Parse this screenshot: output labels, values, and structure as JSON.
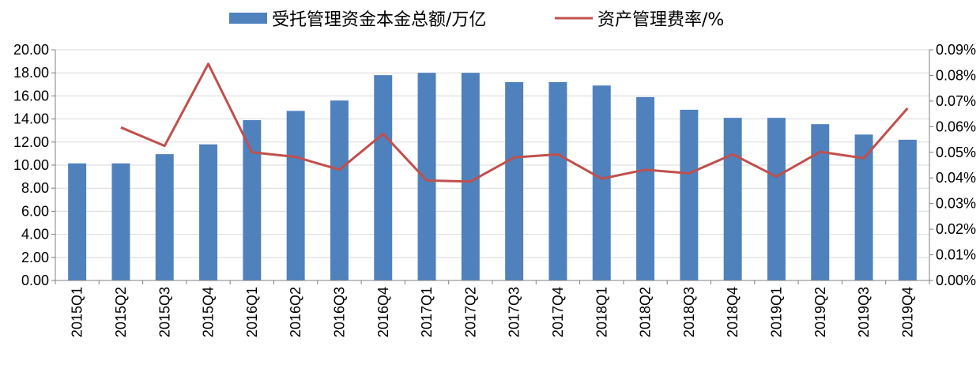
{
  "chart_data": {
    "type": "bar",
    "categories": [
      "2015Q1",
      "2015Q2",
      "2015Q3",
      "2015Q4",
      "2016Q1",
      "2016Q2",
      "2016Q3",
      "2016Q4",
      "2017Q1",
      "2017Q2",
      "2017Q3",
      "2017Q4",
      "2018Q1",
      "2018Q2",
      "2018Q3",
      "2018Q4",
      "2019Q1",
      "2019Q2",
      "2019Q3",
      "2019Q4"
    ],
    "series": [
      {
        "name": "受托管理资金本金总额/万亿",
        "type": "bar",
        "axis": "left",
        "color": "#4f81bd",
        "values": [
          10.15,
          10.15,
          10.95,
          11.8,
          13.9,
          14.7,
          15.6,
          17.8,
          18.0,
          18.0,
          17.2,
          17.2,
          16.9,
          15.9,
          14.8,
          14.1,
          14.1,
          13.55,
          12.65,
          12.2
        ]
      },
      {
        "name": "资产管理费率/%",
        "type": "line",
        "axis": "right",
        "color": "#c0504d",
        "values": [
          null,
          0.0597,
          0.0525,
          0.0845,
          0.05,
          0.0482,
          0.0432,
          0.0572,
          0.039,
          0.0386,
          0.048,
          0.0492,
          0.0397,
          0.0432,
          0.0418,
          0.0492,
          0.0405,
          0.0502,
          0.0477,
          0.0672
        ]
      }
    ],
    "y_left": {
      "ylim": [
        0,
        20
      ],
      "ticks": [
        "0.00",
        "2.00",
        "4.00",
        "6.00",
        "8.00",
        "10.00",
        "12.00",
        "14.00",
        "16.00",
        "18.00",
        "20.00"
      ]
    },
    "y_right": {
      "ylim": [
        0,
        0.09
      ],
      "ticks": [
        "0.00%",
        "0.01%",
        "0.02%",
        "0.03%",
        "0.04%",
        "0.05%",
        "0.06%",
        "0.07%",
        "0.08%",
        "0.09%"
      ]
    },
    "grid": true,
    "legend_position": "top-center"
  }
}
